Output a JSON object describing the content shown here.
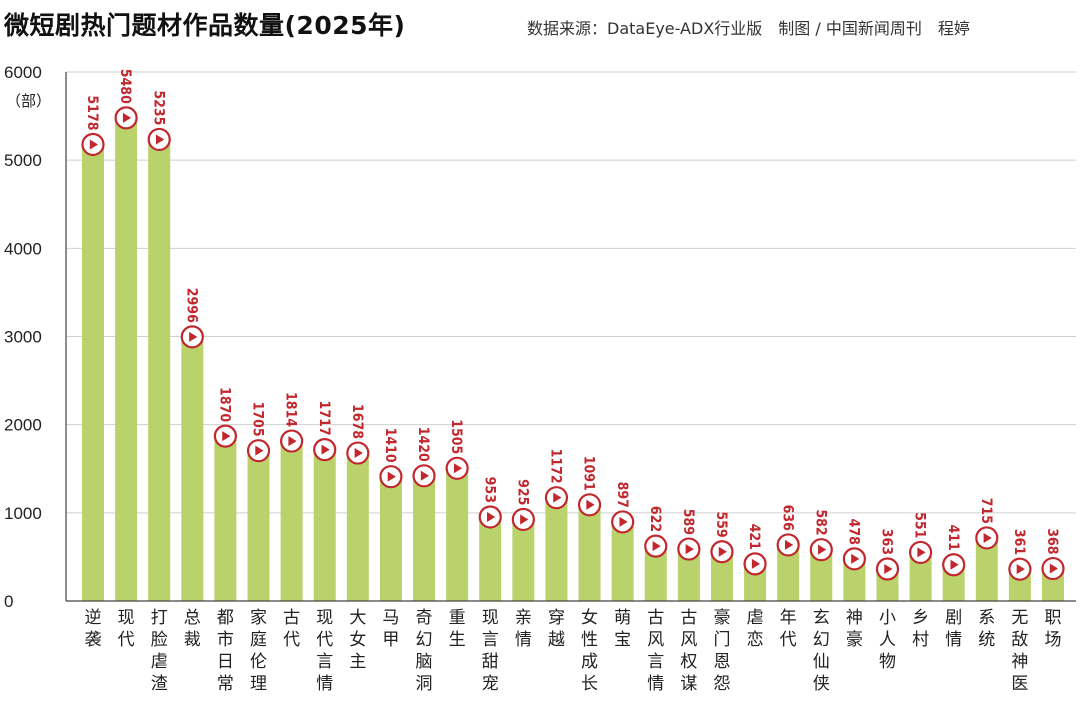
{
  "chart_data": {
    "type": "bar",
    "title": "微短剧热门题材作品数量(2025年)",
    "source": "数据来源：DataEye-ADX行业版　制图 / 中国新闻周刊　程婷",
    "ylabel": "（部）",
    "ylim": [
      0,
      6000
    ],
    "yticks": [
      0,
      1000,
      2000,
      3000,
      4000,
      5000,
      6000
    ],
    "grid": true,
    "categories": [
      "逆袭",
      "现代",
      "打脸虐渣",
      "总裁",
      "都市日常",
      "家庭伦理",
      "古代",
      "现代言情",
      "大女主",
      "马甲",
      "奇幻脑洞",
      "重生",
      "现言甜宠",
      "亲情",
      "穿越",
      "女性成长",
      "萌宝",
      "古风言情",
      "古风权谋",
      "豪门恩怨",
      "虐恋",
      "年代",
      "玄幻仙侠",
      "神豪",
      "小人物",
      "乡村",
      "剧情",
      "系统",
      "无敌神医",
      "职场"
    ],
    "values": [
      5178,
      5480,
      5235,
      2996,
      1870,
      1705,
      1814,
      1717,
      1678,
      1410,
      1420,
      1505,
      953,
      925,
      1172,
      1091,
      897,
      622,
      589,
      559,
      421,
      636,
      582,
      478,
      363,
      551,
      411,
      715,
      361,
      368
    ],
    "colors": {
      "bar": "#b9d26b",
      "grid": "#cfcfcf",
      "label": "#c1272d",
      "marker_fill": "#ffffff",
      "axis": "#444444"
    },
    "marker_icon": "play-circle-icon"
  }
}
